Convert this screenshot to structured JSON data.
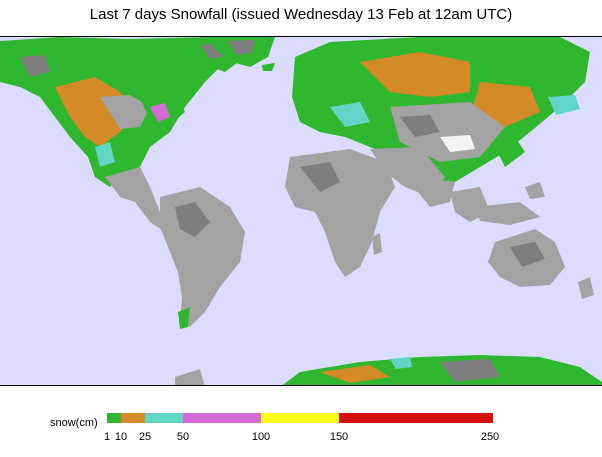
{
  "title": "Last 7 days Snowfall (issued Wednesday 13 Feb at 12am UTC)",
  "colors": {
    "ocean": "#dcdcff",
    "land": "#a3a3a3",
    "land_shade": "#7e7e7e",
    "snow_1_10": "#2fb82f",
    "snow_10_25": "#d48a26",
    "snow_25_50": "#5fd6c6",
    "snow_50_100": "#d46ad6",
    "snow_100_150": "#ffff1a",
    "snow_150_250": "#d40f0f"
  },
  "legend": {
    "unit_label": "snow(cm)",
    "ticks": [
      "1",
      "10",
      "25",
      "50",
      "100",
      "150",
      "250"
    ],
    "bins": [
      {
        "from": 1,
        "to": 10,
        "color": "#2fb82f"
      },
      {
        "from": 10,
        "to": 25,
        "color": "#d48a26"
      },
      {
        "from": 25,
        "to": 50,
        "color": "#5fd6c6"
      },
      {
        "from": 50,
        "to": 100,
        "color": "#d46ad6"
      },
      {
        "from": 100,
        "to": 150,
        "color": "#ffff1a"
      },
      {
        "from": 150,
        "to": 250,
        "color": "#d40f0f"
      }
    ]
  }
}
